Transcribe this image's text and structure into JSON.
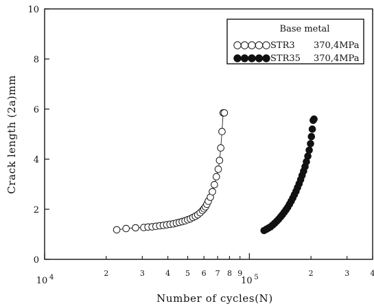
{
  "chart_data": {
    "type": "scatter",
    "xscale": "log",
    "xlim": [
      10000,
      400000
    ],
    "ylim": [
      0,
      10
    ],
    "xlabel": "Number of cycles(N)",
    "ylabel": "Crack length (2a)mm",
    "x_major_ticks": [
      {
        "value": 10000,
        "label": "10",
        "exp": "4"
      },
      {
        "value": 100000,
        "label": "10",
        "exp": "5"
      }
    ],
    "x_minor_ticks": [
      {
        "value": 20000,
        "label": "2"
      },
      {
        "value": 30000,
        "label": "3"
      },
      {
        "value": 40000,
        "label": "4"
      },
      {
        "value": 50000,
        "label": "5"
      },
      {
        "value": 60000,
        "label": "6"
      },
      {
        "value": 70000,
        "label": "7"
      },
      {
        "value": 80000,
        "label": "8"
      },
      {
        "value": 90000,
        "label": "9"
      },
      {
        "value": 200000,
        "label": "2"
      },
      {
        "value": 300000,
        "label": "3"
      },
      {
        "value": 400000,
        "label": "4"
      }
    ],
    "y_ticks": [
      0,
      2,
      4,
      6,
      8,
      10
    ],
    "legend": {
      "placement": "top-right",
      "title": "Base metal",
      "entries": [
        {
          "name": "STR3",
          "condition": "370,4MPa",
          "marker": "open-circle"
        },
        {
          "name": "STR35",
          "condition": "370,4MPa",
          "marker": "filled-circle"
        }
      ]
    },
    "series": [
      {
        "name": "STR3",
        "marker": "open-circle",
        "line": true,
        "x": [
          22500,
          25000,
          27800,
          30500,
          32000,
          33500,
          35000,
          36500,
          38000,
          39500,
          41000,
          42500,
          44000,
          45500,
          47000,
          48500,
          50000,
          51500,
          53000,
          54500,
          56000,
          57500,
          59000,
          60000,
          61000,
          62000,
          63000,
          64500,
          66000,
          67500,
          69000,
          70500,
          71500,
          72500,
          73500,
          74500,
          75500
        ],
        "y": [
          1.18,
          1.23,
          1.26,
          1.27,
          1.29,
          1.3,
          1.32,
          1.34,
          1.36,
          1.38,
          1.4,
          1.42,
          1.45,
          1.48,
          1.51,
          1.54,
          1.58,
          1.62,
          1.67,
          1.72,
          1.78,
          1.86,
          1.95,
          2.02,
          2.1,
          2.2,
          2.32,
          2.48,
          2.7,
          2.98,
          3.3,
          3.6,
          3.95,
          4.45,
          5.1,
          5.85,
          5.85
        ]
      },
      {
        "name": "STR35",
        "marker": "filled-circle",
        "line": false,
        "x": [
          118000,
          121000,
          124000,
          127000,
          130000,
          133000,
          136000,
          139000,
          142000,
          145000,
          148000,
          151000,
          154000,
          157000,
          160000,
          163000,
          166000,
          169000,
          172000,
          175000,
          178000,
          181000,
          184000,
          187000,
          190000,
          193000,
          196000,
          199000,
          201000,
          203000,
          205000,
          207000
        ],
        "y": [
          1.15,
          1.2,
          1.25,
          1.3,
          1.37,
          1.44,
          1.52,
          1.6,
          1.69,
          1.78,
          1.88,
          1.98,
          2.08,
          2.2,
          2.32,
          2.45,
          2.58,
          2.72,
          2.87,
          3.02,
          3.18,
          3.35,
          3.52,
          3.7,
          3.9,
          4.12,
          4.36,
          4.62,
          4.9,
          5.2,
          5.55,
          5.6
        ]
      }
    ]
  }
}
